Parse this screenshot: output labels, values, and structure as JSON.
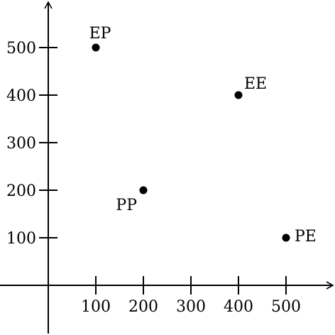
{
  "chart_data": {
    "type": "scatter",
    "title": "",
    "xlabel": "",
    "ylabel": "",
    "xlim": [
      0,
      600
    ],
    "ylim": [
      0,
      600
    ],
    "xticks": [
      100,
      200,
      300,
      400,
      500
    ],
    "yticks": [
      100,
      200,
      300,
      400,
      500
    ],
    "grid": false,
    "points": [
      {
        "label": "EP",
        "x": 100,
        "y": 500
      },
      {
        "label": "EE",
        "x": 400,
        "y": 400
      },
      {
        "label": "PP",
        "x": 200,
        "y": 200
      },
      {
        "label": "PE",
        "x": 500,
        "y": 100
      }
    ]
  }
}
